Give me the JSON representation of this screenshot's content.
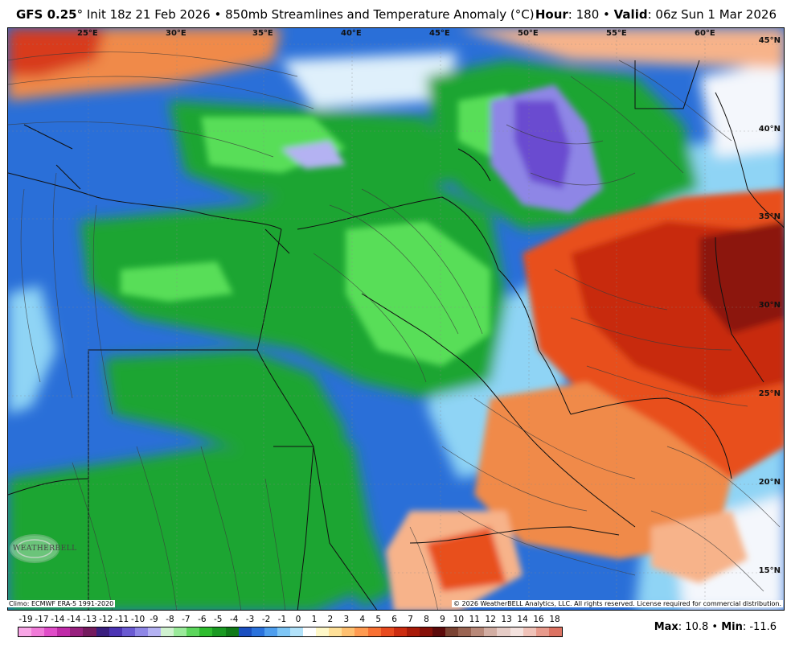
{
  "header": {
    "model": "GFS 0.25",
    "degree": "°",
    "subtitle": " Init 18z 21 Feb 2026 • 850mb Streamlines and Temperature Anomaly (°C)",
    "hour_label": "Hour",
    "hour_value": ": 180 • ",
    "valid_label": "Valid",
    "valid_value": ": 06z Sun 1 Mar 2026"
  },
  "map": {
    "lon_labels": [
      "25°E",
      "30°E",
      "35°E",
      "40°E",
      "45°E",
      "50°E",
      "55°E",
      "60°E"
    ],
    "lat_labels": [
      "45°N",
      "40°N",
      "35°N",
      "30°N",
      "25°N",
      "20°N",
      "15°N"
    ],
    "logo_text": "WEATHERBELL",
    "climo": "Climo: ECMWF ERA-5 1991-2020",
    "copyright": "© 2026 WeatherBELL Analytics, LLC. All rights reserved. License required for commercial distribution.",
    "colors": {
      "ocean_anom": "#2a6fd8",
      "cool_green": "#1fa530",
      "light_green": "#58de58",
      "violet": "#6a4bd0",
      "warm_red": "#d83b1a",
      "dark_red": "#8c1608",
      "orange": "#f08a4a",
      "pale": "#f4f7fc",
      "cyan": "#8fd4f5"
    }
  },
  "colorbar": {
    "ticks": [
      "-19",
      "-17",
      "-14",
      "-14",
      "-13",
      "-12",
      "-11",
      "-10",
      "-9",
      "-8",
      "-7",
      "-6",
      "-5",
      "-4",
      "-3",
      "-2",
      "-1",
      "0",
      "1",
      "2",
      "3",
      "4",
      "5",
      "6",
      "7",
      "8",
      "9",
      "10",
      "11",
      "12",
      "13",
      "14",
      "16",
      "18"
    ],
    "colors": [
      "#f8a6e6",
      "#f07ad8",
      "#e04cc8",
      "#c02aa8",
      "#98207e",
      "#741a5e",
      "#3a1e7e",
      "#4c34b4",
      "#6a5ad2",
      "#8e86e6",
      "#b4b2f2",
      "#d0f2d0",
      "#9aea9a",
      "#5cd65c",
      "#2ebc2e",
      "#1a9a22",
      "#107a18",
      "#1a4fc0",
      "#2a72dc",
      "#4e9eee",
      "#7ec6f6",
      "#b2e2fa",
      "#ffffff",
      "#fff8c8",
      "#ffe098",
      "#ffc070",
      "#ff9a50",
      "#f87032",
      "#e84a1e",
      "#cc2c10",
      "#a81a08",
      "#861008",
      "#5c0a0a",
      "#7a4232",
      "#9a6452",
      "#b88878",
      "#d2ada2",
      "#e6ccc6",
      "#f4e2de",
      "#f0c2b8",
      "#e89a8c",
      "#dc7262"
    ],
    "max_label": "Max",
    "max_value": ": 10.8 • ",
    "min_label": "Min",
    "min_value": ": -11.6"
  }
}
